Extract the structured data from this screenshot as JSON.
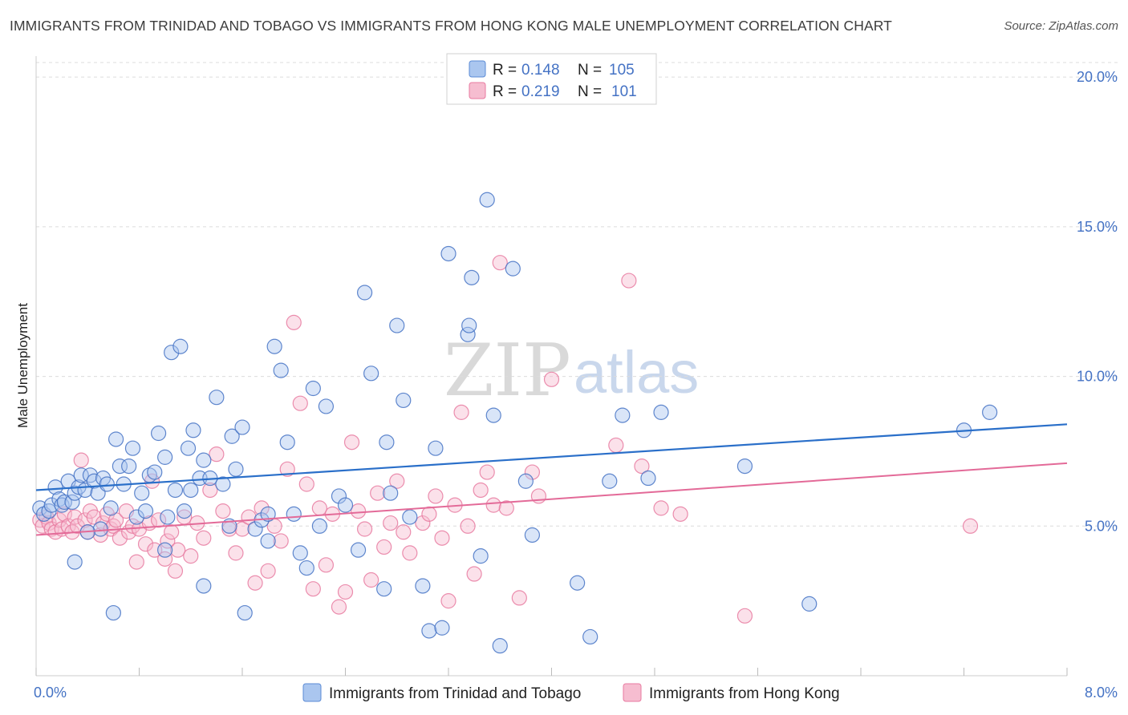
{
  "title": "IMMIGRANTS FROM TRINIDAD AND TOBAGO VS IMMIGRANTS FROM HONG KONG MALE UNEMPLOYMENT CORRELATION CHART",
  "source": "Source: ZipAtlas.com",
  "watermark": {
    "zip": "ZIP",
    "atlas": "atlas"
  },
  "colors": {
    "blue": "#4472c4",
    "blue_fill": "#aac6ef",
    "blue_line": "#2a6fc9",
    "pink": "#e87aa0",
    "pink_fill": "#f6bdd0",
    "pink_line": "#e36a98"
  },
  "legend": {
    "rows": [
      {
        "r_label": "R = ",
        "r_value": "0.148",
        "n_label": "N = ",
        "n_value": "105"
      },
      {
        "r_label": "R = ",
        "r_value": "0.219",
        "n_label": "N = ",
        "n_value": "101"
      }
    ]
  },
  "chart_data": {
    "type": "scatter",
    "ylabel": "Male Unemployment",
    "xlim": [
      0,
      8
    ],
    "ylim": [
      0,
      20.7
    ],
    "y_ticks": [
      {
        "value": 5,
        "label": "5.0%"
      },
      {
        "value": 10,
        "label": "10.0%"
      },
      {
        "value": 15,
        "label": "15.0%"
      },
      {
        "value": 20,
        "label": "20.0%"
      }
    ],
    "x_tick_labels": [
      {
        "value": 0,
        "label": "0.0%"
      },
      {
        "value": 8,
        "label": "8.0%"
      }
    ],
    "x_tick_marks": [
      0,
      0.8,
      1.6,
      2.4,
      3.2,
      4.0,
      4.8,
      5.6,
      6.4,
      7.2,
      8.0
    ],
    "series": [
      {
        "name": "Immigrants from Trinidad and Tobago",
        "trend": [
          [
            0,
            6.2
          ],
          [
            8,
            8.4
          ]
        ],
        "points": [
          [
            0.03,
            5.6
          ],
          [
            0.06,
            5.4
          ],
          [
            0.1,
            5.5
          ],
          [
            0.12,
            5.7
          ],
          [
            0.15,
            6.3
          ],
          [
            0.18,
            5.9
          ],
          [
            0.2,
            5.7
          ],
          [
            0.22,
            5.8
          ],
          [
            0.25,
            6.5
          ],
          [
            0.28,
            5.8
          ],
          [
            0.3,
            6.1
          ],
          [
            0.33,
            6.3
          ],
          [
            0.35,
            6.7
          ],
          [
            0.38,
            6.2
          ],
          [
            0.42,
            6.7
          ],
          [
            0.45,
            6.5
          ],
          [
            0.48,
            6.1
          ],
          [
            0.52,
            6.6
          ],
          [
            0.55,
            6.4
          ],
          [
            0.58,
            5.6
          ],
          [
            0.62,
            7.9
          ],
          [
            0.65,
            7.0
          ],
          [
            0.68,
            6.4
          ],
          [
            0.72,
            7.0
          ],
          [
            0.75,
            7.6
          ],
          [
            0.78,
            5.3
          ],
          [
            0.82,
            6.1
          ],
          [
            0.85,
            5.5
          ],
          [
            0.88,
            6.7
          ],
          [
            0.92,
            6.8
          ],
          [
            0.95,
            8.1
          ],
          [
            1.0,
            7.3
          ],
          [
            1.02,
            5.3
          ],
          [
            1.05,
            10.8
          ],
          [
            1.08,
            6.2
          ],
          [
            1.12,
            11.0
          ],
          [
            1.15,
            5.5
          ],
          [
            1.18,
            7.6
          ],
          [
            1.2,
            6.2
          ],
          [
            1.22,
            8.2
          ],
          [
            1.27,
            6.6
          ],
          [
            1.3,
            7.2
          ],
          [
            1.35,
            6.6
          ],
          [
            1.4,
            9.3
          ],
          [
            1.45,
            6.4
          ],
          [
            1.5,
            5.0
          ],
          [
            1.52,
            8.0
          ],
          [
            1.55,
            6.9
          ],
          [
            1.6,
            8.3
          ],
          [
            1.62,
            2.1
          ],
          [
            1.7,
            4.9
          ],
          [
            1.75,
            5.2
          ],
          [
            1.8,
            5.4
          ],
          [
            1.85,
            11.0
          ],
          [
            1.9,
            10.2
          ],
          [
            1.95,
            7.8
          ],
          [
            2.0,
            5.4
          ],
          [
            2.05,
            4.1
          ],
          [
            2.1,
            3.6
          ],
          [
            2.15,
            9.6
          ],
          [
            2.2,
            5.0
          ],
          [
            2.25,
            9.0
          ],
          [
            2.35,
            6.0
          ],
          [
            2.4,
            5.7
          ],
          [
            2.5,
            4.2
          ],
          [
            2.55,
            12.8
          ],
          [
            2.6,
            10.1
          ],
          [
            2.7,
            2.9
          ],
          [
            2.72,
            7.8
          ],
          [
            2.75,
            6.1
          ],
          [
            2.8,
            11.7
          ],
          [
            2.85,
            9.2
          ],
          [
            2.9,
            5.3
          ],
          [
            3.0,
            3.0
          ],
          [
            3.05,
            1.5
          ],
          [
            3.1,
            7.6
          ],
          [
            3.15,
            1.6
          ],
          [
            3.2,
            14.1
          ],
          [
            3.35,
            11.4
          ],
          [
            3.36,
            11.7
          ],
          [
            3.38,
            13.3
          ],
          [
            3.45,
            4.0
          ],
          [
            3.5,
            15.9
          ],
          [
            3.55,
            8.7
          ],
          [
            3.6,
            1.0
          ],
          [
            3.7,
            13.6
          ],
          [
            3.8,
            6.5
          ],
          [
            3.85,
            4.7
          ],
          [
            4.2,
            3.1
          ],
          [
            4.3,
            1.3
          ],
          [
            4.45,
            6.5
          ],
          [
            4.55,
            8.7
          ],
          [
            4.75,
            6.6
          ],
          [
            4.85,
            8.8
          ],
          [
            5.5,
            7.0
          ],
          [
            6.0,
            2.4
          ],
          [
            7.2,
            8.2
          ],
          [
            7.4,
            8.8
          ],
          [
            0.3,
            3.8
          ],
          [
            0.5,
            4.9
          ],
          [
            0.6,
            2.1
          ],
          [
            1.3,
            3.0
          ],
          [
            0.4,
            4.8
          ],
          [
            1.0,
            4.2
          ],
          [
            1.8,
            4.5
          ]
        ]
      },
      {
        "name": "Immigrants from Hong Kong",
        "trend": [
          [
            0,
            4.7
          ],
          [
            8,
            7.1
          ]
        ],
        "points": [
          [
            0.03,
            5.2
          ],
          [
            0.05,
            5.0
          ],
          [
            0.08,
            5.3
          ],
          [
            0.1,
            5.1
          ],
          [
            0.12,
            4.9
          ],
          [
            0.15,
            4.8
          ],
          [
            0.18,
            5.2
          ],
          [
            0.2,
            4.9
          ],
          [
            0.22,
            5.4
          ],
          [
            0.25,
            5.0
          ],
          [
            0.28,
            4.8
          ],
          [
            0.3,
            5.3
          ],
          [
            0.32,
            5.0
          ],
          [
            0.35,
            7.2
          ],
          [
            0.38,
            5.2
          ],
          [
            0.4,
            4.8
          ],
          [
            0.42,
            5.5
          ],
          [
            0.45,
            5.3
          ],
          [
            0.5,
            4.7
          ],
          [
            0.52,
            5.1
          ],
          [
            0.55,
            5.4
          ],
          [
            0.58,
            4.9
          ],
          [
            0.6,
            5.0
          ],
          [
            0.62,
            5.2
          ],
          [
            0.65,
            4.6
          ],
          [
            0.7,
            5.5
          ],
          [
            0.72,
            4.8
          ],
          [
            0.75,
            5.0
          ],
          [
            0.78,
            3.8
          ],
          [
            0.8,
            4.9
          ],
          [
            0.85,
            4.4
          ],
          [
            0.88,
            5.1
          ],
          [
            0.9,
            6.5
          ],
          [
            0.92,
            4.2
          ],
          [
            0.95,
            5.2
          ],
          [
            1.0,
            3.9
          ],
          [
            1.02,
            4.5
          ],
          [
            1.05,
            4.8
          ],
          [
            1.08,
            3.5
          ],
          [
            1.1,
            4.2
          ],
          [
            1.15,
            5.3
          ],
          [
            1.2,
            4.0
          ],
          [
            1.25,
            5.1
          ],
          [
            1.3,
            4.6
          ],
          [
            1.35,
            6.2
          ],
          [
            1.4,
            7.4
          ],
          [
            1.45,
            5.5
          ],
          [
            1.5,
            4.9
          ],
          [
            1.55,
            4.1
          ],
          [
            1.6,
            4.9
          ],
          [
            1.65,
            5.3
          ],
          [
            1.7,
            3.1
          ],
          [
            1.75,
            5.6
          ],
          [
            1.8,
            3.5
          ],
          [
            1.85,
            5.0
          ],
          [
            1.9,
            4.5
          ],
          [
            1.95,
            6.9
          ],
          [
            2.0,
            11.8
          ],
          [
            2.05,
            9.1
          ],
          [
            2.1,
            6.4
          ],
          [
            2.15,
            2.9
          ],
          [
            2.2,
            5.6
          ],
          [
            2.25,
            3.7
          ],
          [
            2.3,
            5.4
          ],
          [
            2.35,
            2.3
          ],
          [
            2.4,
            2.8
          ],
          [
            2.45,
            7.8
          ],
          [
            2.5,
            5.5
          ],
          [
            2.55,
            4.9
          ],
          [
            2.6,
            3.2
          ],
          [
            2.65,
            6.1
          ],
          [
            2.7,
            4.3
          ],
          [
            2.75,
            5.1
          ],
          [
            2.8,
            6.5
          ],
          [
            2.85,
            4.8
          ],
          [
            2.9,
            4.1
          ],
          [
            3.0,
            5.1
          ],
          [
            3.05,
            5.4
          ],
          [
            3.1,
            6.0
          ],
          [
            3.15,
            4.6
          ],
          [
            3.2,
            2.5
          ],
          [
            3.25,
            5.7
          ],
          [
            3.3,
            8.8
          ],
          [
            3.35,
            5.0
          ],
          [
            3.4,
            3.4
          ],
          [
            3.45,
            6.2
          ],
          [
            3.5,
            6.8
          ],
          [
            3.55,
            5.7
          ],
          [
            3.6,
            13.8
          ],
          [
            3.65,
            5.6
          ],
          [
            3.75,
            2.6
          ],
          [
            3.85,
            6.8
          ],
          [
            3.9,
            6.0
          ],
          [
            4.0,
            9.9
          ],
          [
            4.5,
            7.7
          ],
          [
            4.6,
            13.2
          ],
          [
            4.7,
            7.0
          ],
          [
            4.85,
            5.6
          ],
          [
            5.0,
            5.4
          ],
          [
            5.5,
            2.0
          ],
          [
            7.25,
            5.0
          ]
        ]
      }
    ]
  }
}
